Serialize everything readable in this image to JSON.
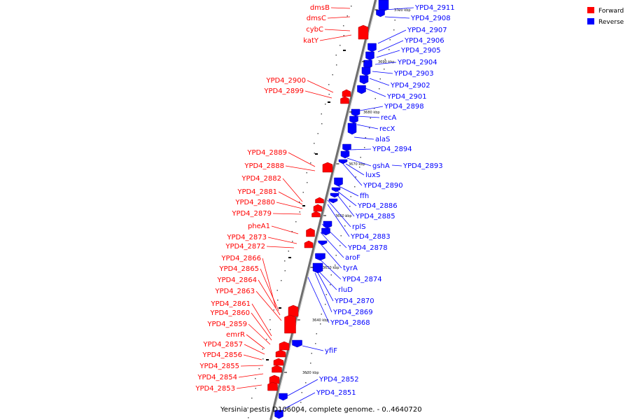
{
  "caption": "Yersinia pestis D106004, complete genome. - 0..4640720",
  "legend": [
    {
      "label": "Forward",
      "color": "#ff0000"
    },
    {
      "label": "Reverse",
      "color": "#0000ff"
    }
  ],
  "colors": {
    "forward": "#ff0000",
    "reverse": "#0000ff",
    "axis": "#888888"
  },
  "ruler_labels": [
    "3700 kbp",
    "3690 kbp",
    "3680 kbp",
    "3670 kbp",
    "3660 kbp",
    "3650 kbp",
    "3640 kbp",
    "3630 kbp"
  ],
  "forward_genes": [
    "dmsB",
    "dmsC",
    "cybC",
    "katY",
    "YPD4_2900",
    "YPD4_2899",
    "YPD4_2889",
    "YPD4_2888",
    "YPD4_2882",
    "YPD4_2881",
    "YPD4_2880",
    "YPD4_2879",
    "pheA1",
    "YPD4_2873",
    "YPD4_2872",
    "YPD4_2866",
    "YPD4_2865",
    "YPD4_2864",
    "YPD4_2863",
    "YPD4_2861",
    "YPD4_2860",
    "YPD4_2859",
    "emrR",
    "YPD4_2857",
    "YPD4_2856",
    "YPD4_2855",
    "YPD4_2854",
    "YPD4_2853"
  ],
  "reverse_genes": [
    "YPD4_2911",
    "YPD4_2908",
    "YPD4_2907",
    "YPD4_2906",
    "YPD4_2905",
    "YPD4_2904",
    "YPD4_2903",
    "YPD4_2902",
    "YPD4_2901",
    "YPD4_2898",
    "recA",
    "recX",
    "alaS",
    "YPD4_2894",
    "gshA",
    "YPD4_2893",
    "luxS",
    "YPD4_2890",
    "ffh",
    "YPD4_2886",
    "YPD4_2885",
    "rplS",
    "YPD4_2883",
    "YPD4_2878",
    "aroF",
    "tyrA",
    "YPD4_2874",
    "rluD",
    "YPD4_2870",
    "YPD4_2869",
    "YPD4_2868",
    "yfiF",
    "YPD4_2852",
    "YPD4_2851"
  ]
}
